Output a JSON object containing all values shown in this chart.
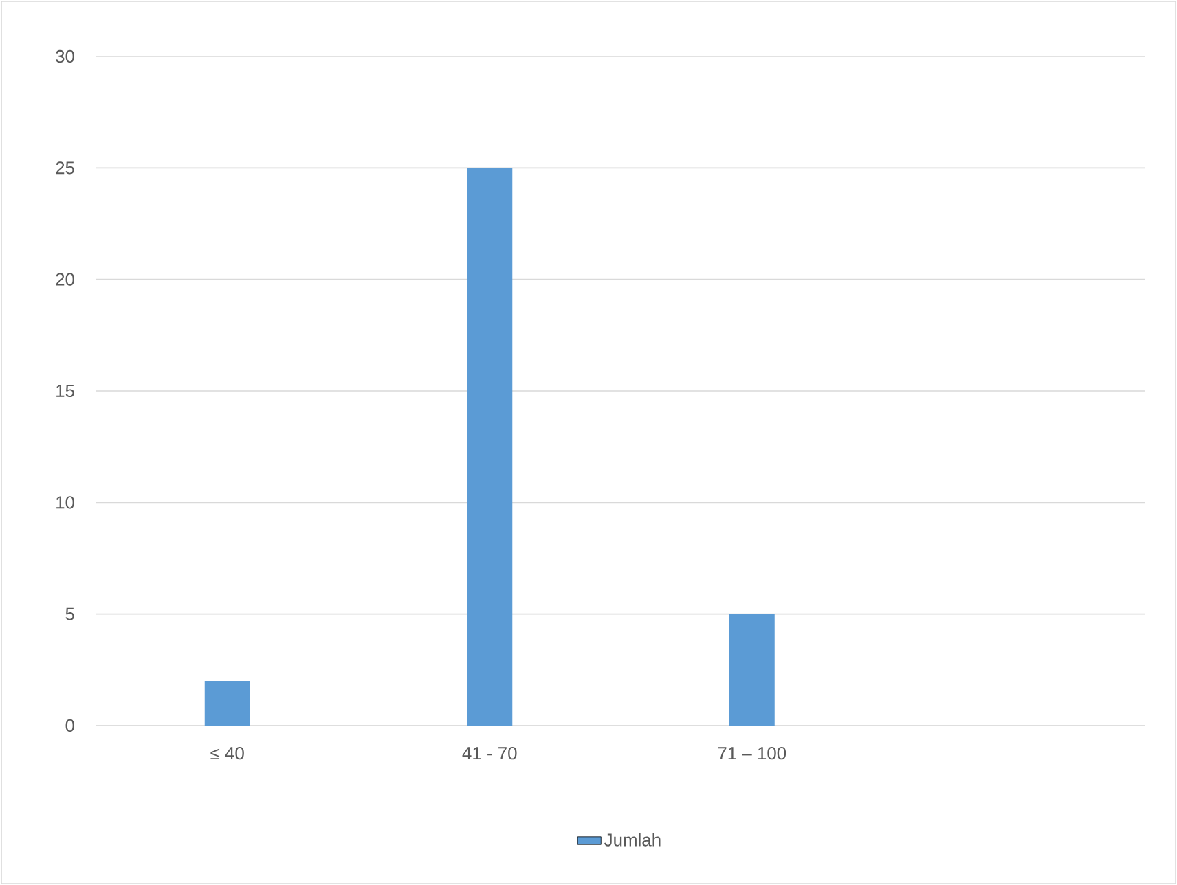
{
  "chart_data": {
    "type": "bar",
    "categories": [
      "≤ 40",
      "41 - 70",
      "71 – 100",
      null
    ],
    "series": [
      {
        "name": "Jumlah",
        "color": "#5b9bd5",
        "values": [
          2,
          25,
          5,
          null
        ]
      }
    ],
    "ylim": [
      0,
      30
    ],
    "yticks": [
      0,
      5,
      10,
      15,
      20,
      25,
      30
    ],
    "grid": "y",
    "legend": "bottom"
  }
}
